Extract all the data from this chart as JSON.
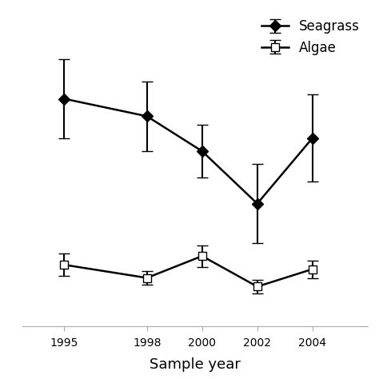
{
  "years": [
    1995,
    1998,
    2000,
    2002,
    2004
  ],
  "seagrass_values": [
    52,
    48,
    40,
    28,
    43
  ],
  "seagrass_errors": [
    9,
    8,
    6,
    9,
    10
  ],
  "algae_values": [
    14,
    11,
    16,
    9,
    13
  ],
  "algae_errors": [
    2.5,
    1.5,
    2.5,
    1.5,
    2.0
  ],
  "xlabel": "Sample year",
  "seagrass_label": "Seagrass",
  "algae_label": "Algae",
  "line_color": "#000000",
  "background_color": "#ffffff",
  "ylim": [
    0,
    72
  ]
}
